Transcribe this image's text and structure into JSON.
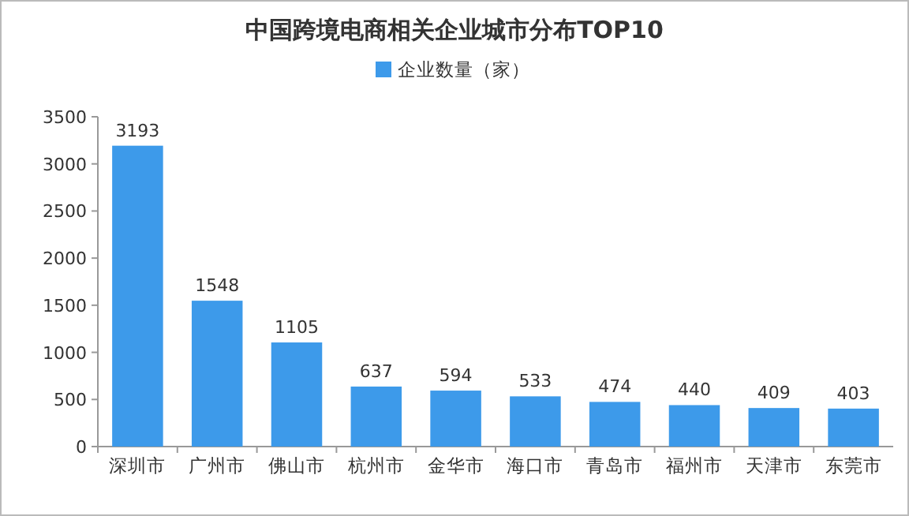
{
  "chart_data": {
    "type": "bar",
    "title": "中国跨境电商相关企业城市分布TOP10",
    "categories": [
      "深圳市",
      "广州市",
      "佛山市",
      "杭州市",
      "金华市",
      "海口市",
      "青岛市",
      "福州市",
      "天津市",
      "东莞市"
    ],
    "series": [
      {
        "name": "企业数量（家）",
        "color": "#3d9aea",
        "values": [
          3193,
          1548,
          1105,
          637,
          594,
          533,
          474,
          440,
          409,
          403
        ]
      }
    ],
    "ylim": [
      0,
      3500
    ],
    "yticks": [
      0,
      500,
      1000,
      1500,
      2000,
      2500,
      3000,
      3500
    ],
    "data_labels": true,
    "legend": "top"
  }
}
